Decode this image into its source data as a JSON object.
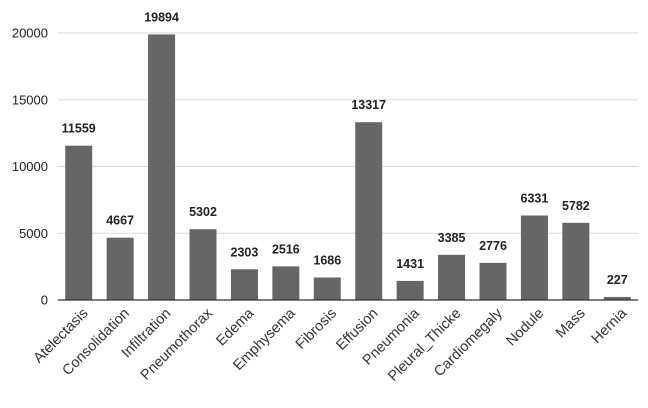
{
  "chart_data": {
    "type": "bar",
    "title": "",
    "xlabel": "",
    "ylabel": "",
    "categories": [
      "Atelectasis",
      "Consolidation",
      "Infiltration",
      "Pneumothorax",
      "Edema",
      "Emphysema",
      "Fibrosis",
      "Effusion",
      "Pneumonia",
      "Pleural_Thicke",
      "Cardiomegaly",
      "Nodule",
      "Mass",
      "Hernia"
    ],
    "values": [
      11559,
      4667,
      19894,
      5302,
      2303,
      2516,
      1686,
      13317,
      1431,
      3385,
      2776,
      6331,
      5782,
      227
    ],
    "ylim": [
      0,
      20000
    ],
    "yticks": [
      0,
      5000,
      10000,
      15000,
      20000
    ],
    "grid": true,
    "legend": "none",
    "bar_color": "#666666",
    "data_labels": true
  }
}
